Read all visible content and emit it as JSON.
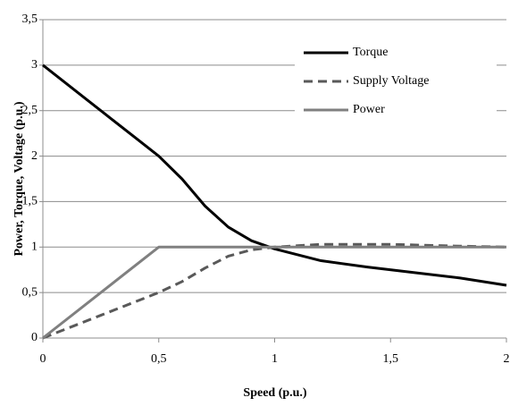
{
  "chart_data": {
    "type": "line",
    "xlabel": "Speed (p.u.)",
    "ylabel": "Power, Torque, Voltage (p.u.)",
    "xlim": [
      0,
      2
    ],
    "ylim": [
      0,
      3.5
    ],
    "xticks": [
      0,
      {
        "value": 0.5,
        "label": "0,5"
      },
      1,
      {
        "value": 1.5,
        "label": "1,5"
      },
      2
    ],
    "yticks": [
      0,
      {
        "value": 0.5,
        "label": "0,5"
      },
      1,
      {
        "value": 1.5,
        "label": "1,5"
      },
      2,
      {
        "value": 2.5,
        "label": "2,5"
      },
      3,
      {
        "value": 3.5,
        "label": "3,5"
      }
    ],
    "grid": true,
    "legend": "upper right",
    "series": [
      {
        "name": "Torque",
        "color": "#000000",
        "style": "solid",
        "x": [
          0,
          0.1,
          0.2,
          0.3,
          0.4,
          0.5,
          0.6,
          0.7,
          0.8,
          0.9,
          1.0,
          1.2,
          1.4,
          1.6,
          1.8,
          2.0
        ],
        "values": [
          3,
          2.8,
          2.6,
          2.4,
          2.2,
          2.0,
          1.75,
          1.45,
          1.22,
          1.07,
          0.98,
          0.85,
          0.78,
          0.72,
          0.66,
          0.58
        ]
      },
      {
        "name": "Supply Voltage",
        "color": "#595959",
        "style": "dashed",
        "x": [
          0,
          0.25,
          0.5,
          0.6,
          0.7,
          0.8,
          0.9,
          1.0,
          1.2,
          1.5,
          1.8,
          2.0
        ],
        "values": [
          0,
          0.25,
          0.5,
          0.62,
          0.77,
          0.9,
          0.97,
          1.0,
          1.03,
          1.03,
          1.01,
          1.0
        ]
      },
      {
        "name": "Power",
        "color": "#808080",
        "style": "solid",
        "x": [
          0,
          0.5,
          2
        ],
        "values": [
          0,
          1,
          1
        ]
      }
    ]
  }
}
